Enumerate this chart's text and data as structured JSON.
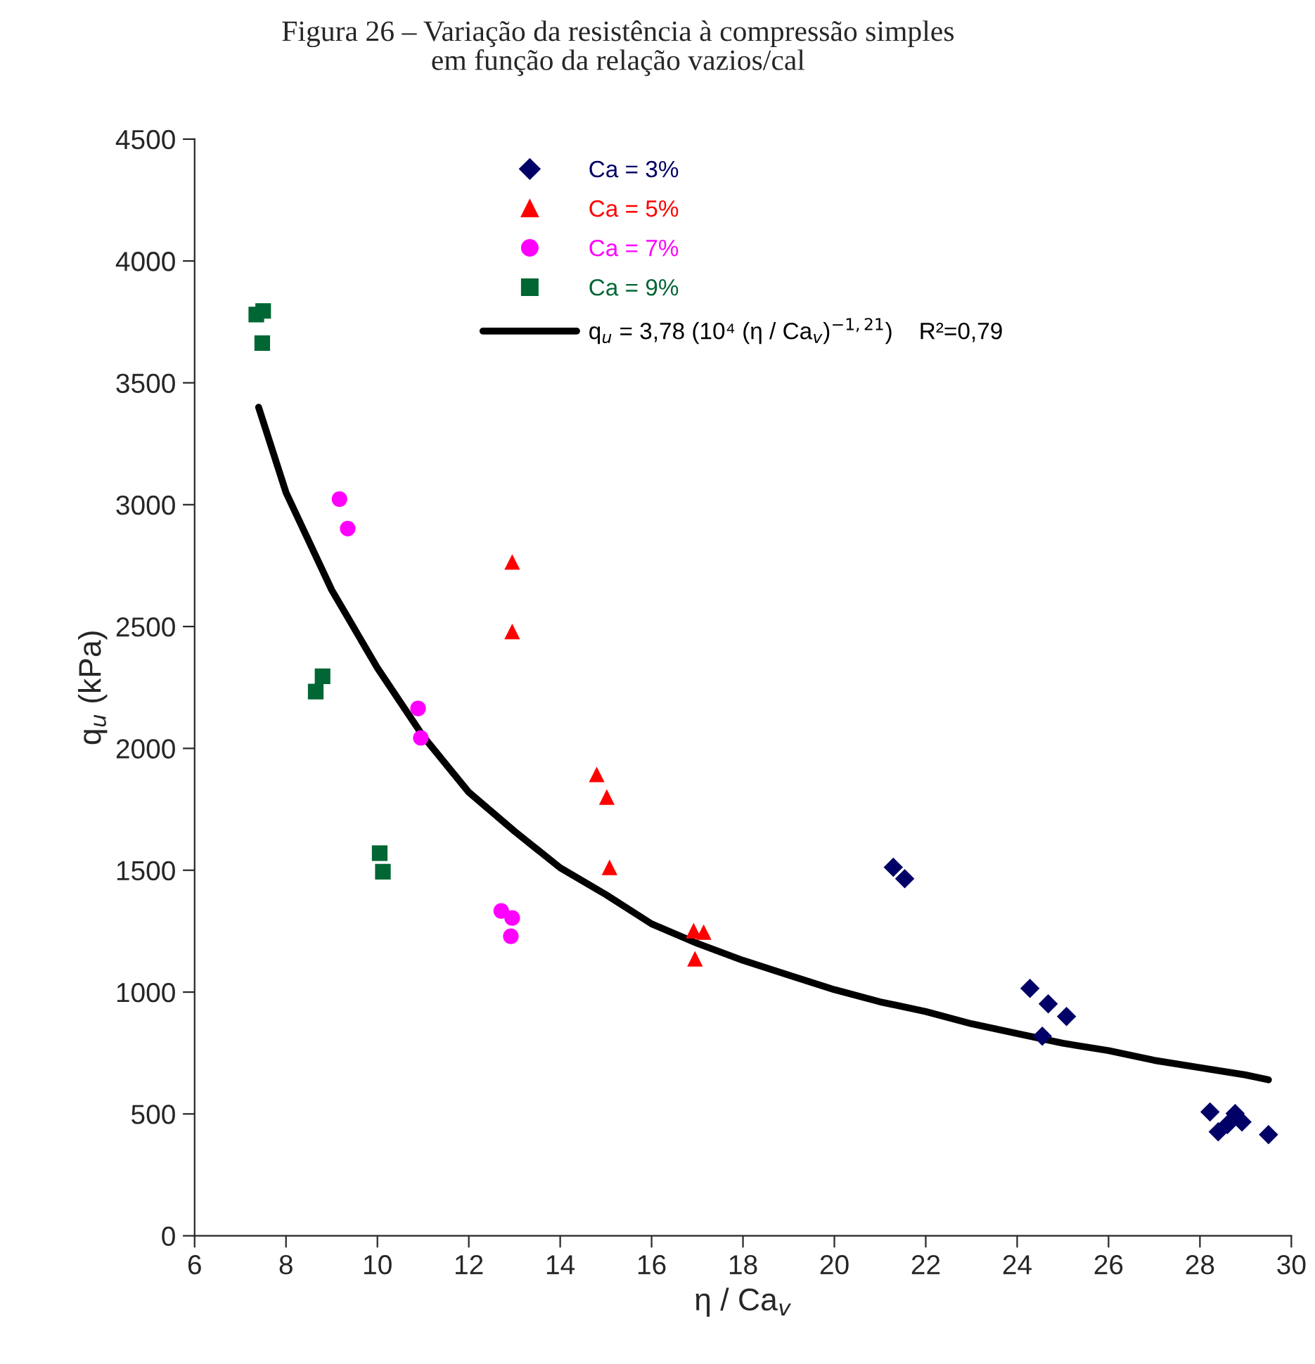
{
  "chart_data": {
    "type": "scatter",
    "title": "Figura 26 – Variação da resistência à compressão simples\nem função da relação vazios/cal",
    "xlabel": "η / Ca$_{v}$",
    "ylabel": "q$_{u}$ (kPa)",
    "xlim": [
      6,
      30
    ],
    "xticks": [
      6,
      8,
      10,
      12,
      14,
      16,
      18,
      20,
      22,
      24,
      26,
      28,
      30
    ],
    "ylim": [
      0,
      4500
    ],
    "yticks": [
      0,
      500,
      1000,
      1500,
      2000,
      2500,
      3000,
      3500,
      4000,
      4500
    ],
    "grid": false,
    "legend": "top",
    "series": [
      {
        "name": "Ca = 3%",
        "color": "#000066",
        "marker": "diamond",
        "x": [
          21.29,
          21.54,
          24.28,
          24.68,
          25.08,
          24.55,
          28.22,
          28.4,
          28.6,
          28.77,
          28.92,
          29.5
        ],
        "values": [
          1512,
          1465,
          1015,
          952,
          900,
          819,
          508,
          427,
          456,
          502,
          467,
          415
        ]
      },
      {
        "name": "Ca = 5%",
        "color": "#ff0000",
        "marker": "triangle",
        "x": [
          12.95,
          12.95,
          14.8,
          15.02,
          15.08,
          16.92,
          17.14,
          16.95
        ],
        "values": [
          2765,
          2480,
          1893,
          1800,
          1512,
          1252,
          1246,
          1137
        ]
      },
      {
        "name": "Ca = 7%",
        "color": "#ff00ff",
        "marker": "circle",
        "x": [
          9.17,
          9.35,
          10.89,
          10.95,
          12.71,
          12.95,
          12.92
        ],
        "values": [
          3023,
          2902,
          2164,
          2043,
          1333,
          1304,
          1229
        ]
      },
      {
        "name": "Ca = 9%",
        "color": "#006633",
        "marker": "square",
        "x": [
          7.35,
          7.5,
          7.48,
          8.8,
          8.65,
          10.05,
          10.12
        ],
        "values": [
          3780,
          3795,
          3663,
          2296,
          2233,
          1570,
          1494
        ]
      },
      {
        "name": "q$_{u}$ = 3,78 (10⁴ (η / Ca$_{v}$)$^{−1,21}$)    R²=0,79",
        "type": "line",
        "color": "#000000",
        "marker": "none",
        "line_style": "solid",
        "x": [
          7.4,
          8,
          9,
          10,
          11,
          12,
          13,
          14,
          15,
          16,
          17,
          18,
          19,
          20,
          21,
          22,
          23,
          24,
          25,
          26,
          27,
          28,
          29,
          29.5
        ],
        "values": [
          3400,
          3050,
          2650,
          2330,
          2050,
          1820,
          1660,
          1510,
          1400,
          1280,
          1200,
          1130,
          1070,
          1010,
          960,
          920,
          870,
          830,
          790,
          760,
          720,
          690,
          660,
          640
        ]
      }
    ]
  }
}
